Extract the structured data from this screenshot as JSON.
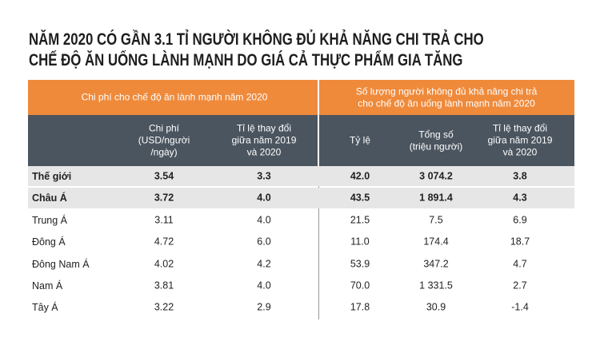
{
  "title": [
    "NĂM 2020 CÓ GẦN 3.1 TỈ NGƯỜI KHÔNG ĐỦ KHẢ NĂNG CHI TRẢ CHO",
    "CHẾ ĐỘ ĂN UỐNG LÀNH MẠNH DO GIÁ CẢ THỰC PHẨM GIA TĂNG"
  ],
  "table": {
    "group_headers": [
      [
        "Chi phí cho chế độ ăn lành mạnh năm 2020"
      ],
      [
        "Số lượng người không đủ khả năng chi trả",
        "cho chế độ ăn uống lành mạnh năm 2020"
      ]
    ],
    "column_headers": [
      [
        "Chi phí",
        "(USD/người",
        "/ngày)"
      ],
      [
        "Tỉ lệ thay đổi",
        "giữa năm 2019",
        "và 2020"
      ],
      [
        "Tỷ lệ"
      ],
      [
        "Tổng số",
        "(triệu người)"
      ],
      [
        "Tỉ lệ thay đổi",
        "giữa năm 2019",
        "và 2020"
      ]
    ],
    "rows": [
      [
        "Thế giới",
        "3.54",
        "3.3",
        "42.0",
        "3 074.2",
        "3.8"
      ],
      [
        "Châu Á",
        "3.72",
        "4.0",
        "43.5",
        "1 891.4",
        "4.3"
      ],
      [
        "Trung Á",
        "3.11",
        "4.0",
        "21.5",
        "7.5",
        "6.9"
      ],
      [
        "Đông Á",
        "4.72",
        "6.0",
        "11.0",
        "174.4",
        "18.7"
      ],
      [
        "Đông Nam Á",
        "4.02",
        "4.2",
        "53.9",
        "347.2",
        "4.7"
      ],
      [
        "Nam Á",
        "3.81",
        "4.0",
        "70.0",
        "1 331.5",
        "2.7"
      ],
      [
        "Tây Á",
        "3.22",
        "2.9",
        "17.8",
        "30.9",
        "-1.4"
      ]
    ]
  }
}
